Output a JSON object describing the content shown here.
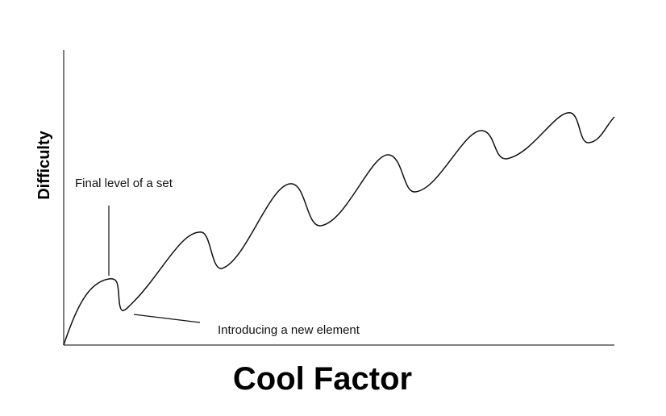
{
  "axes": {
    "x_label": "Cool Factor",
    "y_label": "Difficulty"
  },
  "annotations": [
    "Final level of a set",
    "Introducing a new element"
  ]
}
